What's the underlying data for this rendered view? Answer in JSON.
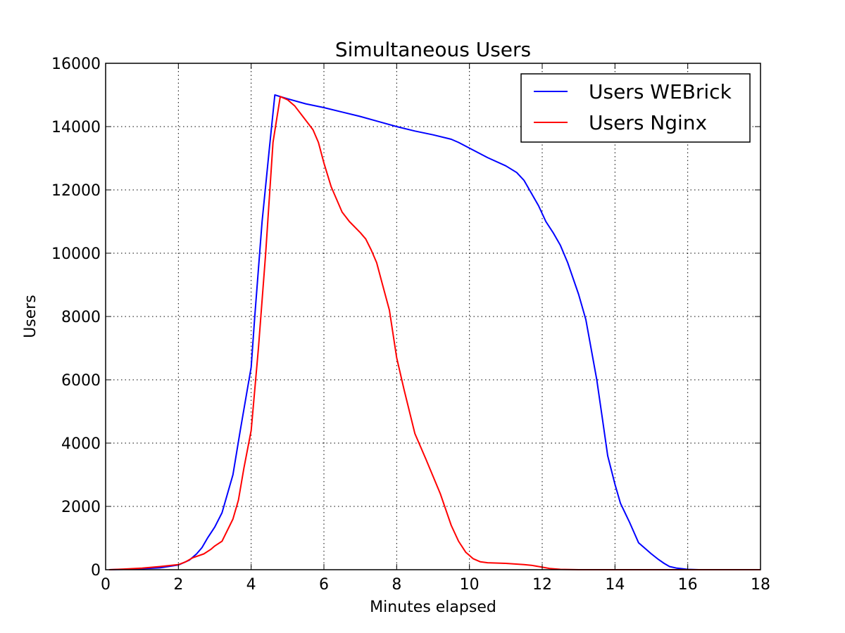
{
  "chart_data": {
    "type": "line",
    "title": "Simultaneous Users",
    "xlabel": "Minutes elapsed",
    "ylabel": "Users",
    "xlim": [
      0,
      18
    ],
    "ylim": [
      0,
      16000
    ],
    "xticks": [
      0,
      2,
      4,
      6,
      8,
      10,
      12,
      14,
      16,
      18
    ],
    "yticks": [
      0,
      2000,
      4000,
      6000,
      8000,
      10000,
      12000,
      14000,
      16000
    ],
    "grid": true,
    "legend_position": "top-right",
    "series": [
      {
        "name": "Users WEBrick",
        "color": "#0000ff",
        "x": [
          0.1,
          0.5,
          1.0,
          1.5,
          2.0,
          2.3,
          2.5,
          2.65,
          2.8,
          3.0,
          3.2,
          3.5,
          3.7,
          4.0,
          4.1,
          4.3,
          4.5,
          4.65,
          5.0,
          5.5,
          6.0,
          6.5,
          7.0,
          7.5,
          8.0,
          8.5,
          9.0,
          9.5,
          9.7,
          10.0,
          10.5,
          11.0,
          11.3,
          11.5,
          11.7,
          11.9,
          12.1,
          12.3,
          12.5,
          12.7,
          13.0,
          13.2,
          13.5,
          13.65,
          13.8,
          14.0,
          14.15,
          14.4,
          14.65,
          15.0,
          15.2,
          15.35,
          15.5,
          15.7,
          16.0,
          16.3,
          16.6,
          17.0,
          18.0
        ],
        "values": [
          0,
          10,
          30,
          60,
          150,
          300,
          500,
          700,
          1000,
          1350,
          1800,
          3000,
          4400,
          6400,
          8000,
          11000,
          13300,
          15000,
          14880,
          14720,
          14600,
          14460,
          14320,
          14160,
          14000,
          13860,
          13740,
          13600,
          13500,
          13320,
          13020,
          12760,
          12550,
          12300,
          11900,
          11500,
          11000,
          10650,
          10250,
          9700,
          8700,
          7900,
          6000,
          4800,
          3600,
          2700,
          2100,
          1500,
          850,
          500,
          320,
          200,
          100,
          50,
          10,
          0,
          0,
          0,
          0
        ]
      },
      {
        "name": "Users Nginx",
        "color": "#ff0000",
        "x": [
          0.1,
          0.5,
          1.0,
          1.5,
          2.0,
          2.2,
          2.4,
          2.7,
          2.9,
          3.0,
          3.2,
          3.5,
          3.65,
          3.8,
          4.0,
          4.2,
          4.4,
          4.6,
          4.8,
          5.0,
          5.2,
          5.5,
          5.7,
          5.85,
          6.0,
          6.2,
          6.5,
          6.7,
          7.0,
          7.15,
          7.3,
          7.45,
          7.6,
          7.8,
          8.0,
          8.2,
          8.5,
          8.8,
          9.0,
          9.2,
          9.5,
          9.7,
          9.9,
          10.1,
          10.3,
          10.5,
          11.0,
          11.5,
          11.7,
          12.0,
          12.2,
          12.5,
          13.0,
          18.0
        ],
        "values": [
          0,
          20,
          50,
          100,
          160,
          250,
          380,
          500,
          650,
          750,
          900,
          1600,
          2200,
          3200,
          4400,
          7000,
          10000,
          13500,
          14950,
          14850,
          14650,
          14200,
          13900,
          13500,
          12850,
          12100,
          11300,
          11000,
          10650,
          10450,
          10100,
          9700,
          9050,
          8200,
          6700,
          5700,
          4300,
          3500,
          2950,
          2400,
          1400,
          900,
          550,
          350,
          250,
          220,
          200,
          160,
          140,
          80,
          40,
          10,
          0,
          0
        ]
      }
    ]
  }
}
